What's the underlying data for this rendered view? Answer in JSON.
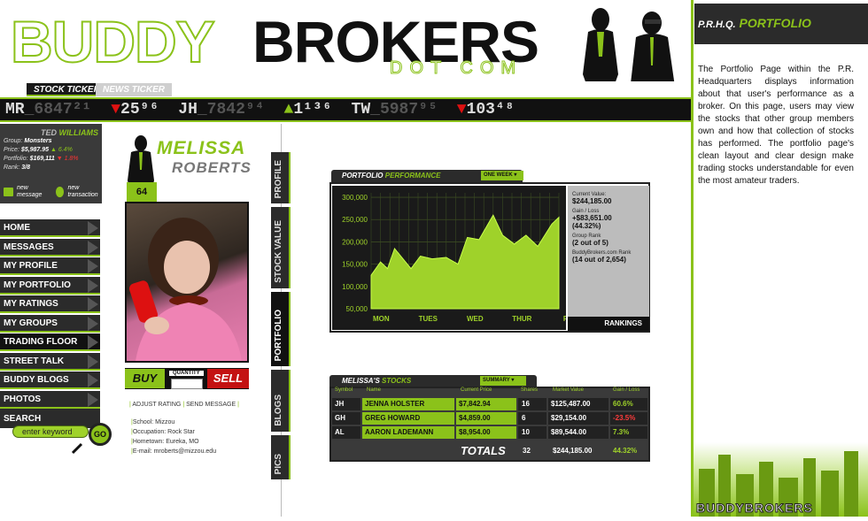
{
  "header": {
    "logo_buddy": "BUDDY",
    "logo_brokers": "BROKERS",
    "logo_dotcom": "DOT COM"
  },
  "ticker": {
    "tabs": [
      {
        "label": "STOCK TICKER",
        "active": true
      },
      {
        "label": "NEWS TICKER",
        "active": false
      }
    ],
    "items": [
      {
        "symbol": "MR",
        "value": "_6847²¹",
        "dir": "none"
      },
      {
        "symbol": "",
        "value": "25⁹⁶",
        "dir": "down"
      },
      {
        "symbol": "JH",
        "value": "_7842⁹⁴",
        "dir": "none"
      },
      {
        "symbol": "",
        "value": "1¹³⁶",
        "dir": "up"
      },
      {
        "symbol": "TW",
        "value": "_5987⁹⁵",
        "dir": "none"
      },
      {
        "symbol": "",
        "value": "103⁴⁸",
        "dir": "down"
      }
    ]
  },
  "user": {
    "first": "TED",
    "last": "WILLIAMS",
    "group_label": "Group:",
    "group": "Monsters",
    "price_label": "Price:",
    "price": "$5,987.95",
    "price_change": "6.4%",
    "portfolio_label": "Portfolio:",
    "portfolio": "$169,111",
    "portfolio_change": "1.8%",
    "rank_label": "Rank:",
    "rank": "3/8",
    "new_message": "new message",
    "new_transaction": "new transaction"
  },
  "nav": {
    "items": [
      {
        "label": "HOME",
        "active": false
      },
      {
        "label": "MESSAGES",
        "active": false
      },
      {
        "label": "MY PROFILE",
        "active": false
      },
      {
        "label": "MY PORTFOLIO",
        "active": false
      },
      {
        "label": "MY RATINGS",
        "active": false
      },
      {
        "label": "MY GROUPS",
        "active": false
      },
      {
        "label": "TRADING FLOOR",
        "active": true
      },
      {
        "label": "STREET TALK",
        "active": false
      },
      {
        "label": "BUDDY BLOGS",
        "active": false
      },
      {
        "label": "PHOTOS",
        "active": false
      }
    ],
    "search_label": "SEARCH",
    "search_placeholder": "enter keyword",
    "go_label": "GO"
  },
  "profile": {
    "first": "MELISSA",
    "last": "ROBERTS",
    "rank": "64",
    "buy": "BUY",
    "quantity": "QUANTITY",
    "sell": "SELL",
    "adjust_rating": "ADJUST RATING",
    "send_message": "SEND MESSAGE",
    "info": [
      {
        "k": "School:",
        "v": "Mizzou"
      },
      {
        "k": "Occupation:",
        "v": "Rock Star"
      },
      {
        "k": "Hometown:",
        "v": "Eureka, MO"
      },
      {
        "k": "E-mail:",
        "v": "mroberts@mizzou.edu"
      }
    ]
  },
  "vtabs": [
    {
      "label": "PROFILE",
      "active": false
    },
    {
      "label": "STOCK VALUE",
      "active": false
    },
    {
      "label": "PORTFOLIO",
      "active": true
    },
    {
      "label": "BLOGS",
      "active": false
    },
    {
      "label": "PICS",
      "active": false
    }
  ],
  "performance": {
    "title_a": "PORTFOLIO",
    "title_b": "PERFORMANCE",
    "range": "ONE WEEK",
    "current_label": "Current Value:",
    "current_value": "$244,185.00",
    "gain_label": "Gain / Loss",
    "gain_value": "+$83,651.00",
    "gain_pct": "(44.32%)",
    "group_rank_label": "Group Rank",
    "group_rank_value": "(2 out of 5)",
    "site_rank_label": "BuddyBrokers.com Rank",
    "site_rank_value": "(14 out of 2,654)",
    "rankings": "RANKINGS"
  },
  "chart_data": {
    "type": "area",
    "x": [
      "MON",
      "TUES",
      "WED",
      "THUR",
      "FRI"
    ],
    "yticks": [
      "50,000",
      "100,000",
      "150,000",
      "200,000",
      "250,000",
      "300,000"
    ],
    "ylim": [
      50000,
      310000
    ],
    "grid": true,
    "points": [
      [
        0,
        125000
      ],
      [
        0.2,
        155000
      ],
      [
        0.35,
        140000
      ],
      [
        0.5,
        185000
      ],
      [
        0.85,
        140000
      ],
      [
        1.05,
        168000
      ],
      [
        1.3,
        162000
      ],
      [
        1.6,
        165000
      ],
      [
        1.85,
        150000
      ],
      [
        2.05,
        210000
      ],
      [
        2.3,
        205000
      ],
      [
        2.6,
        260000
      ],
      [
        2.8,
        215000
      ],
      [
        3.05,
        195000
      ],
      [
        3.3,
        215000
      ],
      [
        3.55,
        190000
      ],
      [
        3.85,
        240000
      ],
      [
        4.0,
        255000
      ]
    ],
    "colors": {
      "fill": "#9fd22a",
      "bg": "#1a1a1a",
      "grid": "#3a4a22"
    }
  },
  "stocks": {
    "title_a": "MELISSA'S",
    "title_b": "STOCKS",
    "view": "SUMMARY",
    "headers": [
      "Symbol",
      "Name",
      "Current Price",
      "Shares",
      "Market Value",
      "Gain / Loss"
    ],
    "rows": [
      {
        "symbol": "JH",
        "name": "JENNA HOLSTER",
        "price": "$7,842.94",
        "shares": "16",
        "value": "$125,487.00",
        "gain": "60.6%",
        "dir": "up"
      },
      {
        "symbol": "GH",
        "name": "GREG HOWARD",
        "price": "$4,859.00",
        "shares": "6",
        "value": "$29,154.00",
        "gain": "-23.5%",
        "dir": "down"
      },
      {
        "symbol": "AL",
        "name": "AARON LADEMANN",
        "price": "$8,954.00",
        "shares": "10",
        "value": "$89,544.00",
        "gain": "7.3%",
        "dir": "up"
      }
    ],
    "totals_label": "TOTALS",
    "total_shares": "32",
    "total_value": "$244,185.00",
    "total_gain": "44.32%"
  },
  "sidebar": {
    "title_prefix": "P.R.H.Q.",
    "title": "PORTFOLIO",
    "description": "The Portfolio Page within the P.R. Headquarters displays information about that user's performance as a broker. On this page, users may view the stocks that other group members own and how that collection of stocks has performed. The portfolio page's clean layout and clear design make trading stocks understandable for even the most amateur traders.",
    "footer_logo": "BUDDYBROKERS"
  }
}
